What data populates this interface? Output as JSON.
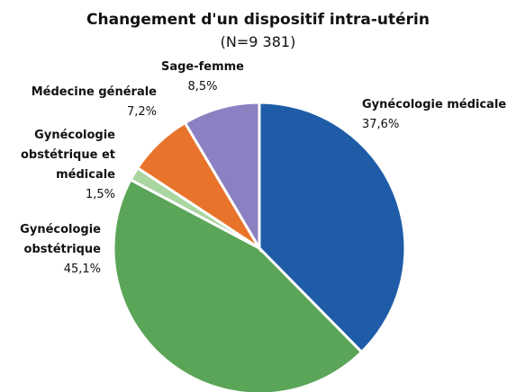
{
  "chart_data": {
    "type": "pie",
    "title": "Changement d'un dispositif intra-utérin",
    "subtitle": "(N=9 381)",
    "categories": [
      "Gynécologie médicale",
      "Gynécologie obstétrique",
      "Gynécologie obstétrique et médicale",
      "Médecine générale",
      "Sage-femme"
    ],
    "values": [
      37.6,
      45.1,
      1.5,
      7.2,
      8.5
    ],
    "value_labels": [
      "37,6%",
      "45,1%",
      "1,5%",
      "7,2%",
      "8,5%"
    ],
    "colors": [
      "#1f5ca8",
      "#5aa557",
      "#aad6a2",
      "#e8742c",
      "#8a80c2"
    ]
  }
}
